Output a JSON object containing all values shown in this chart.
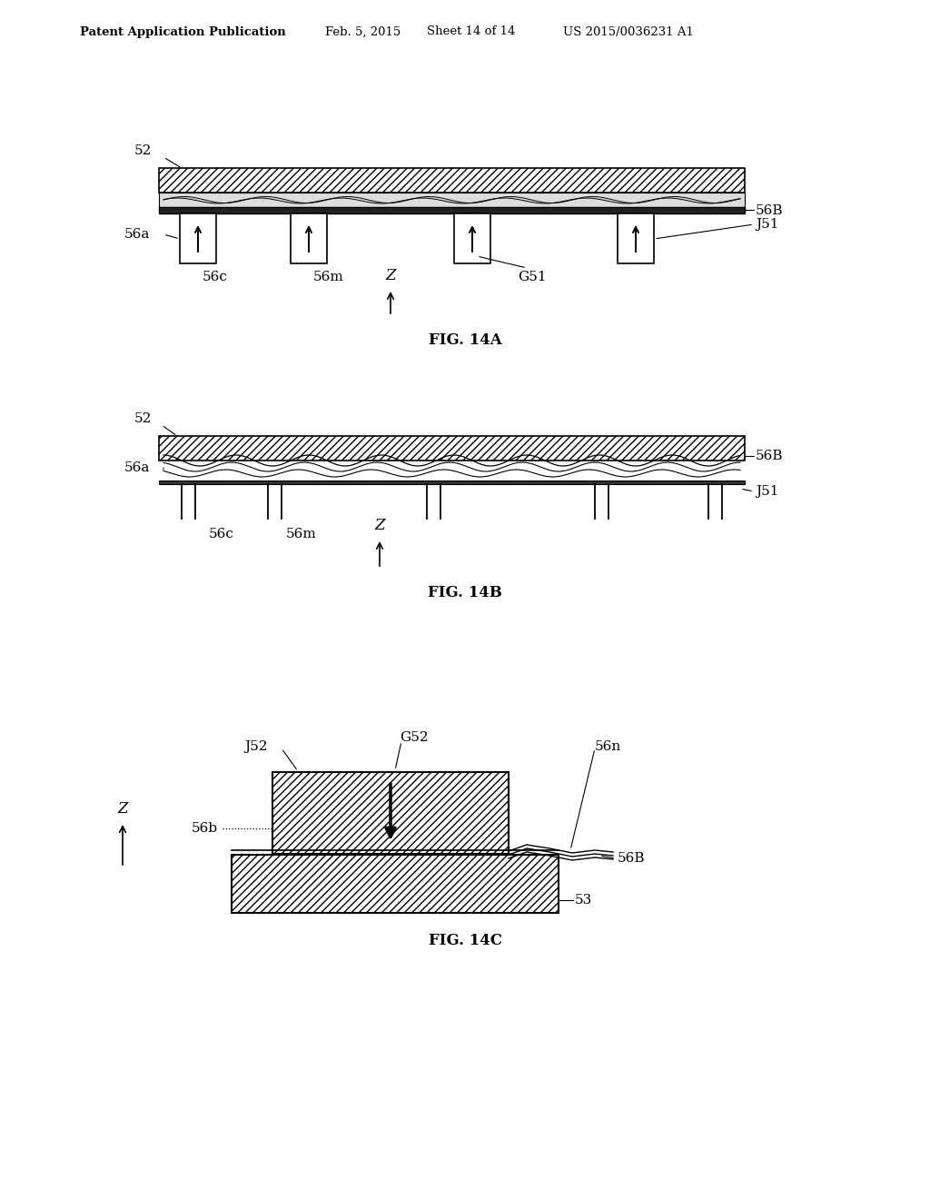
{
  "bg_color": "#ffffff",
  "header_text": "Patent Application Publication",
  "header_date": "Feb. 5, 2015",
  "header_sheet": "Sheet 14 of 14",
  "header_patent": "US 2015/0036231 A1",
  "fig14a_caption": "FIG. 14A",
  "fig14b_caption": "FIG. 14B",
  "fig14c_caption": "FIG. 14C",
  "line_color": "#000000"
}
